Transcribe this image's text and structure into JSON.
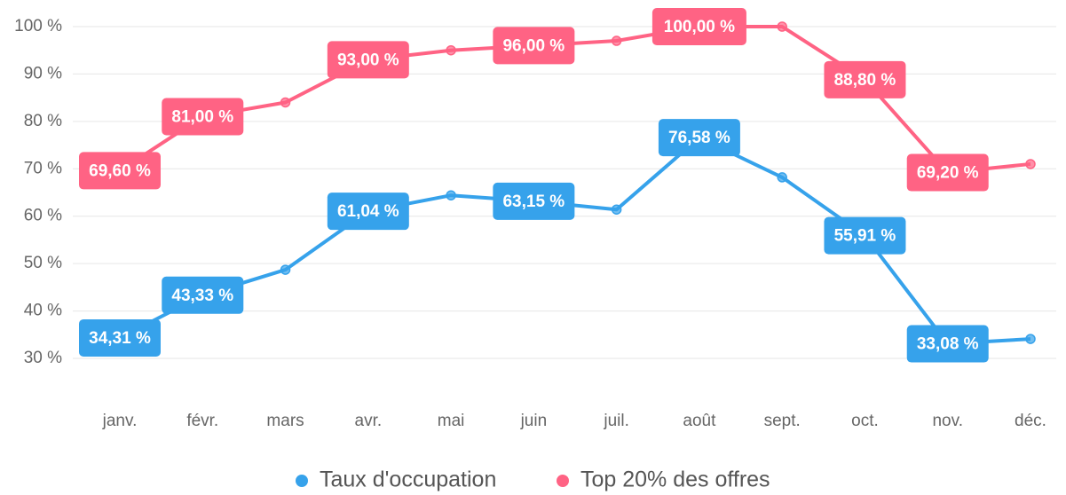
{
  "chart_data": {
    "type": "line",
    "categories": [
      "janv.",
      "févr.",
      "mars",
      "avr.",
      "mai",
      "juin",
      "juil.",
      "août",
      "sept.",
      "oct.",
      "nov.",
      "déc."
    ],
    "series": [
      {
        "name": "Taux d'occupation",
        "color": "#36a2eb",
        "values": [
          34.31,
          43.33,
          48.7,
          61.04,
          64.4,
          63.15,
          61.4,
          76.58,
          68.2,
          55.91,
          33.08,
          34.1
        ],
        "value_labels": [
          "34,31 %",
          "43,33 %",
          null,
          "61,04 %",
          null,
          "63,15 %",
          null,
          "76,58 %",
          null,
          "55,91 %",
          "33,08 %",
          null
        ]
      },
      {
        "name": "Top 20% des offres",
        "color": "#ff6384",
        "values": [
          69.6,
          81.0,
          84,
          93.0,
          95,
          96.0,
          97,
          100.0,
          100,
          88.8,
          69.2,
          71
        ],
        "value_labels": [
          "69,60 %",
          "81,00 %",
          null,
          "93,00 %",
          null,
          "96,00 %",
          null,
          "100,00 %",
          null,
          "88,80 %",
          "69,20 %",
          null
        ]
      }
    ],
    "ylim": [
      30,
      100
    ],
    "yticks": [
      {
        "value": 30,
        "label": "30 %"
      },
      {
        "value": 40,
        "label": "40 %"
      },
      {
        "value": 50,
        "label": "50 %"
      },
      {
        "value": 60,
        "label": "60 %"
      },
      {
        "value": 70,
        "label": "70 %"
      },
      {
        "value": 80,
        "label": "80 %"
      },
      {
        "value": 90,
        "label": "90 %"
      },
      {
        "value": 100,
        "label": "100 %"
      }
    ],
    "grid": true,
    "legend": "bottom"
  }
}
